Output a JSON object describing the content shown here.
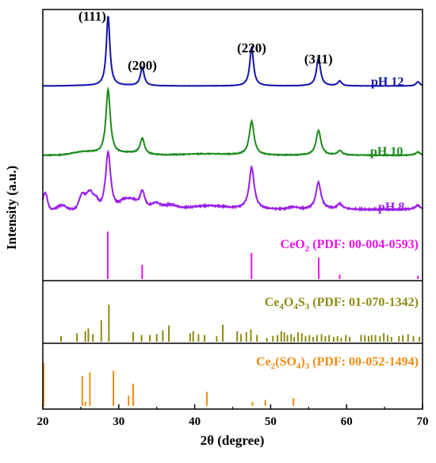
{
  "chart_data": {
    "type": "line",
    "xlabel": "2θ (degree)",
    "ylabel": "Intensity (a.u.)",
    "xlim": [
      20,
      70
    ],
    "x_ticks": [
      "20",
      "30",
      "40",
      "50",
      "60",
      "70"
    ],
    "peak_labels": [
      {
        "text": "(111)",
        "x": 28.6
      },
      {
        "text": "(200)",
        "x": 33.1
      },
      {
        "text": "(220)",
        "x": 47.5
      },
      {
        "text": "(311)",
        "x": 56.3
      }
    ],
    "series": [
      {
        "name": "pH 12",
        "color": "#1414a8",
        "baseline": 0.04,
        "noise": 0.004,
        "bumps": [
          [
            25,
            0.005,
            1.5
          ],
          [
            31,
            0.003,
            2
          ]
        ],
        "peaks": [
          [
            28.6,
            1.0,
            0.28
          ],
          [
            33.1,
            0.26,
            0.3
          ],
          [
            47.5,
            0.55,
            0.3
          ],
          [
            56.3,
            0.4,
            0.32
          ],
          [
            59.1,
            0.07,
            0.3
          ],
          [
            69.4,
            0.06,
            0.3
          ]
        ]
      },
      {
        "name": "pH 10",
        "color": "#1e8c1e",
        "baseline": 0.05,
        "noise": 0.012,
        "bumps": [
          [
            25.5,
            0.05,
            1.5
          ],
          [
            31.5,
            0.03,
            1.5
          ],
          [
            41.5,
            0.02,
            3
          ]
        ],
        "peaks": [
          [
            28.6,
            1.0,
            0.35
          ],
          [
            33.1,
            0.24,
            0.35
          ],
          [
            47.5,
            0.52,
            0.38
          ],
          [
            56.3,
            0.38,
            0.38
          ],
          [
            59.1,
            0.07,
            0.35
          ],
          [
            69.4,
            0.05,
            0.35
          ]
        ]
      },
      {
        "name": "pH 8",
        "color": "#9b1ee8",
        "baseline": 0.08,
        "noise": 0.02,
        "bumps": [
          [
            20.3,
            0.25,
            0.3
          ],
          [
            22.5,
            0.06,
            0.5
          ],
          [
            25.2,
            0.22,
            0.4
          ],
          [
            26.2,
            0.25,
            0.4
          ],
          [
            27.0,
            0.12,
            0.3
          ],
          [
            30.8,
            0.12,
            0.6
          ],
          [
            31.9,
            0.1,
            0.5
          ],
          [
            34.9,
            0.08,
            0.6
          ],
          [
            36.8,
            0.06,
            0.8
          ],
          [
            41.8,
            0.05,
            2.5
          ],
          [
            53.0,
            0.03,
            0.6
          ]
        ],
        "peaks": [
          [
            28.6,
            0.85,
            0.4
          ],
          [
            33.1,
            0.28,
            0.4
          ],
          [
            47.5,
            0.62,
            0.4
          ],
          [
            56.3,
            0.4,
            0.4
          ],
          [
            59.1,
            0.08,
            0.4
          ],
          [
            69.4,
            0.06,
            0.4
          ]
        ]
      }
    ],
    "reference_patterns": [
      {
        "name": "CeO2",
        "label_main": "CeO",
        "label_sub": "2",
        "label_rest": " (PDF: 00-004-0593)",
        "color": "#e814e8",
        "lines": [
          [
            28.55,
            1.0
          ],
          [
            33.08,
            0.3
          ],
          [
            47.48,
            0.55
          ],
          [
            56.33,
            0.45
          ],
          [
            59.09,
            0.09
          ],
          [
            69.4,
            0.07
          ]
        ]
      },
      {
        "name": "Ce4O4S3",
        "label_parts": [
          "Ce",
          "4",
          "O",
          "4",
          "S",
          "3",
          " (PDF: 01-070-1342)"
        ],
        "color": "#8c8c14",
        "lines": [
          [
            22.4,
            0.12
          ],
          [
            24.5,
            0.18
          ],
          [
            25.6,
            0.22
          ],
          [
            26.0,
            0.28
          ],
          [
            26.6,
            0.16
          ],
          [
            27.7,
            0.45
          ],
          [
            28.7,
            0.78
          ],
          [
            31.9,
            0.2
          ],
          [
            33.0,
            0.14
          ],
          [
            34.1,
            0.14
          ],
          [
            35.0,
            0.16
          ],
          [
            35.8,
            0.24
          ],
          [
            36.6,
            0.34
          ],
          [
            39.4,
            0.18
          ],
          [
            39.8,
            0.22
          ],
          [
            40.5,
            0.16
          ],
          [
            41.3,
            0.14
          ],
          [
            42.9,
            0.12
          ],
          [
            43.7,
            0.36
          ],
          [
            45.6,
            0.22
          ],
          [
            46.1,
            0.16
          ],
          [
            46.8,
            0.2
          ],
          [
            47.4,
            0.26
          ],
          [
            48.2,
            0.14
          ],
          [
            49.5,
            0.08
          ],
          [
            50.3,
            0.12
          ],
          [
            50.9,
            0.14
          ],
          [
            51.4,
            0.22
          ],
          [
            51.8,
            0.2
          ],
          [
            52.2,
            0.14
          ],
          [
            52.7,
            0.16
          ],
          [
            53.1,
            0.1
          ],
          [
            53.6,
            0.2
          ],
          [
            54.1,
            0.18
          ],
          [
            54.6,
            0.12
          ],
          [
            55.1,
            0.14
          ],
          [
            55.6,
            0.1
          ],
          [
            56.1,
            0.14
          ],
          [
            56.7,
            0.16
          ],
          [
            57.2,
            0.12
          ],
          [
            57.7,
            0.14
          ],
          [
            58.3,
            0.1
          ],
          [
            58.8,
            0.12
          ],
          [
            59.3,
            0.08
          ],
          [
            59.9,
            0.14
          ],
          [
            60.4,
            0.1
          ],
          [
            61.9,
            0.14
          ],
          [
            62.4,
            0.14
          ],
          [
            62.9,
            0.12
          ],
          [
            63.3,
            0.14
          ],
          [
            63.8,
            0.14
          ],
          [
            64.4,
            0.12
          ],
          [
            64.9,
            0.18
          ],
          [
            65.4,
            0.14
          ],
          [
            65.9,
            0.1
          ],
          [
            66.9,
            0.12
          ],
          [
            67.4,
            0.14
          ],
          [
            68.1,
            0.16
          ],
          [
            68.8,
            0.12
          ],
          [
            69.6,
            0.1
          ]
        ]
      },
      {
        "name": "Ce2(SO4)3",
        "label_parts": [
          "Ce",
          "2",
          "(SO",
          "4",
          ")",
          "3",
          " (PDF: 00-052-1494)"
        ],
        "color": "#f08c14",
        "lines": [
          [
            20.1,
            1.0
          ],
          [
            25.2,
            0.7
          ],
          [
            25.6,
            0.1
          ],
          [
            26.2,
            0.78
          ],
          [
            29.3,
            0.82
          ],
          [
            31.3,
            0.24
          ],
          [
            31.9,
            0.52
          ],
          [
            41.6,
            0.33
          ],
          [
            47.6,
            0.1
          ],
          [
            49.3,
            0.14
          ],
          [
            53.0,
            0.18
          ]
        ]
      }
    ]
  }
}
